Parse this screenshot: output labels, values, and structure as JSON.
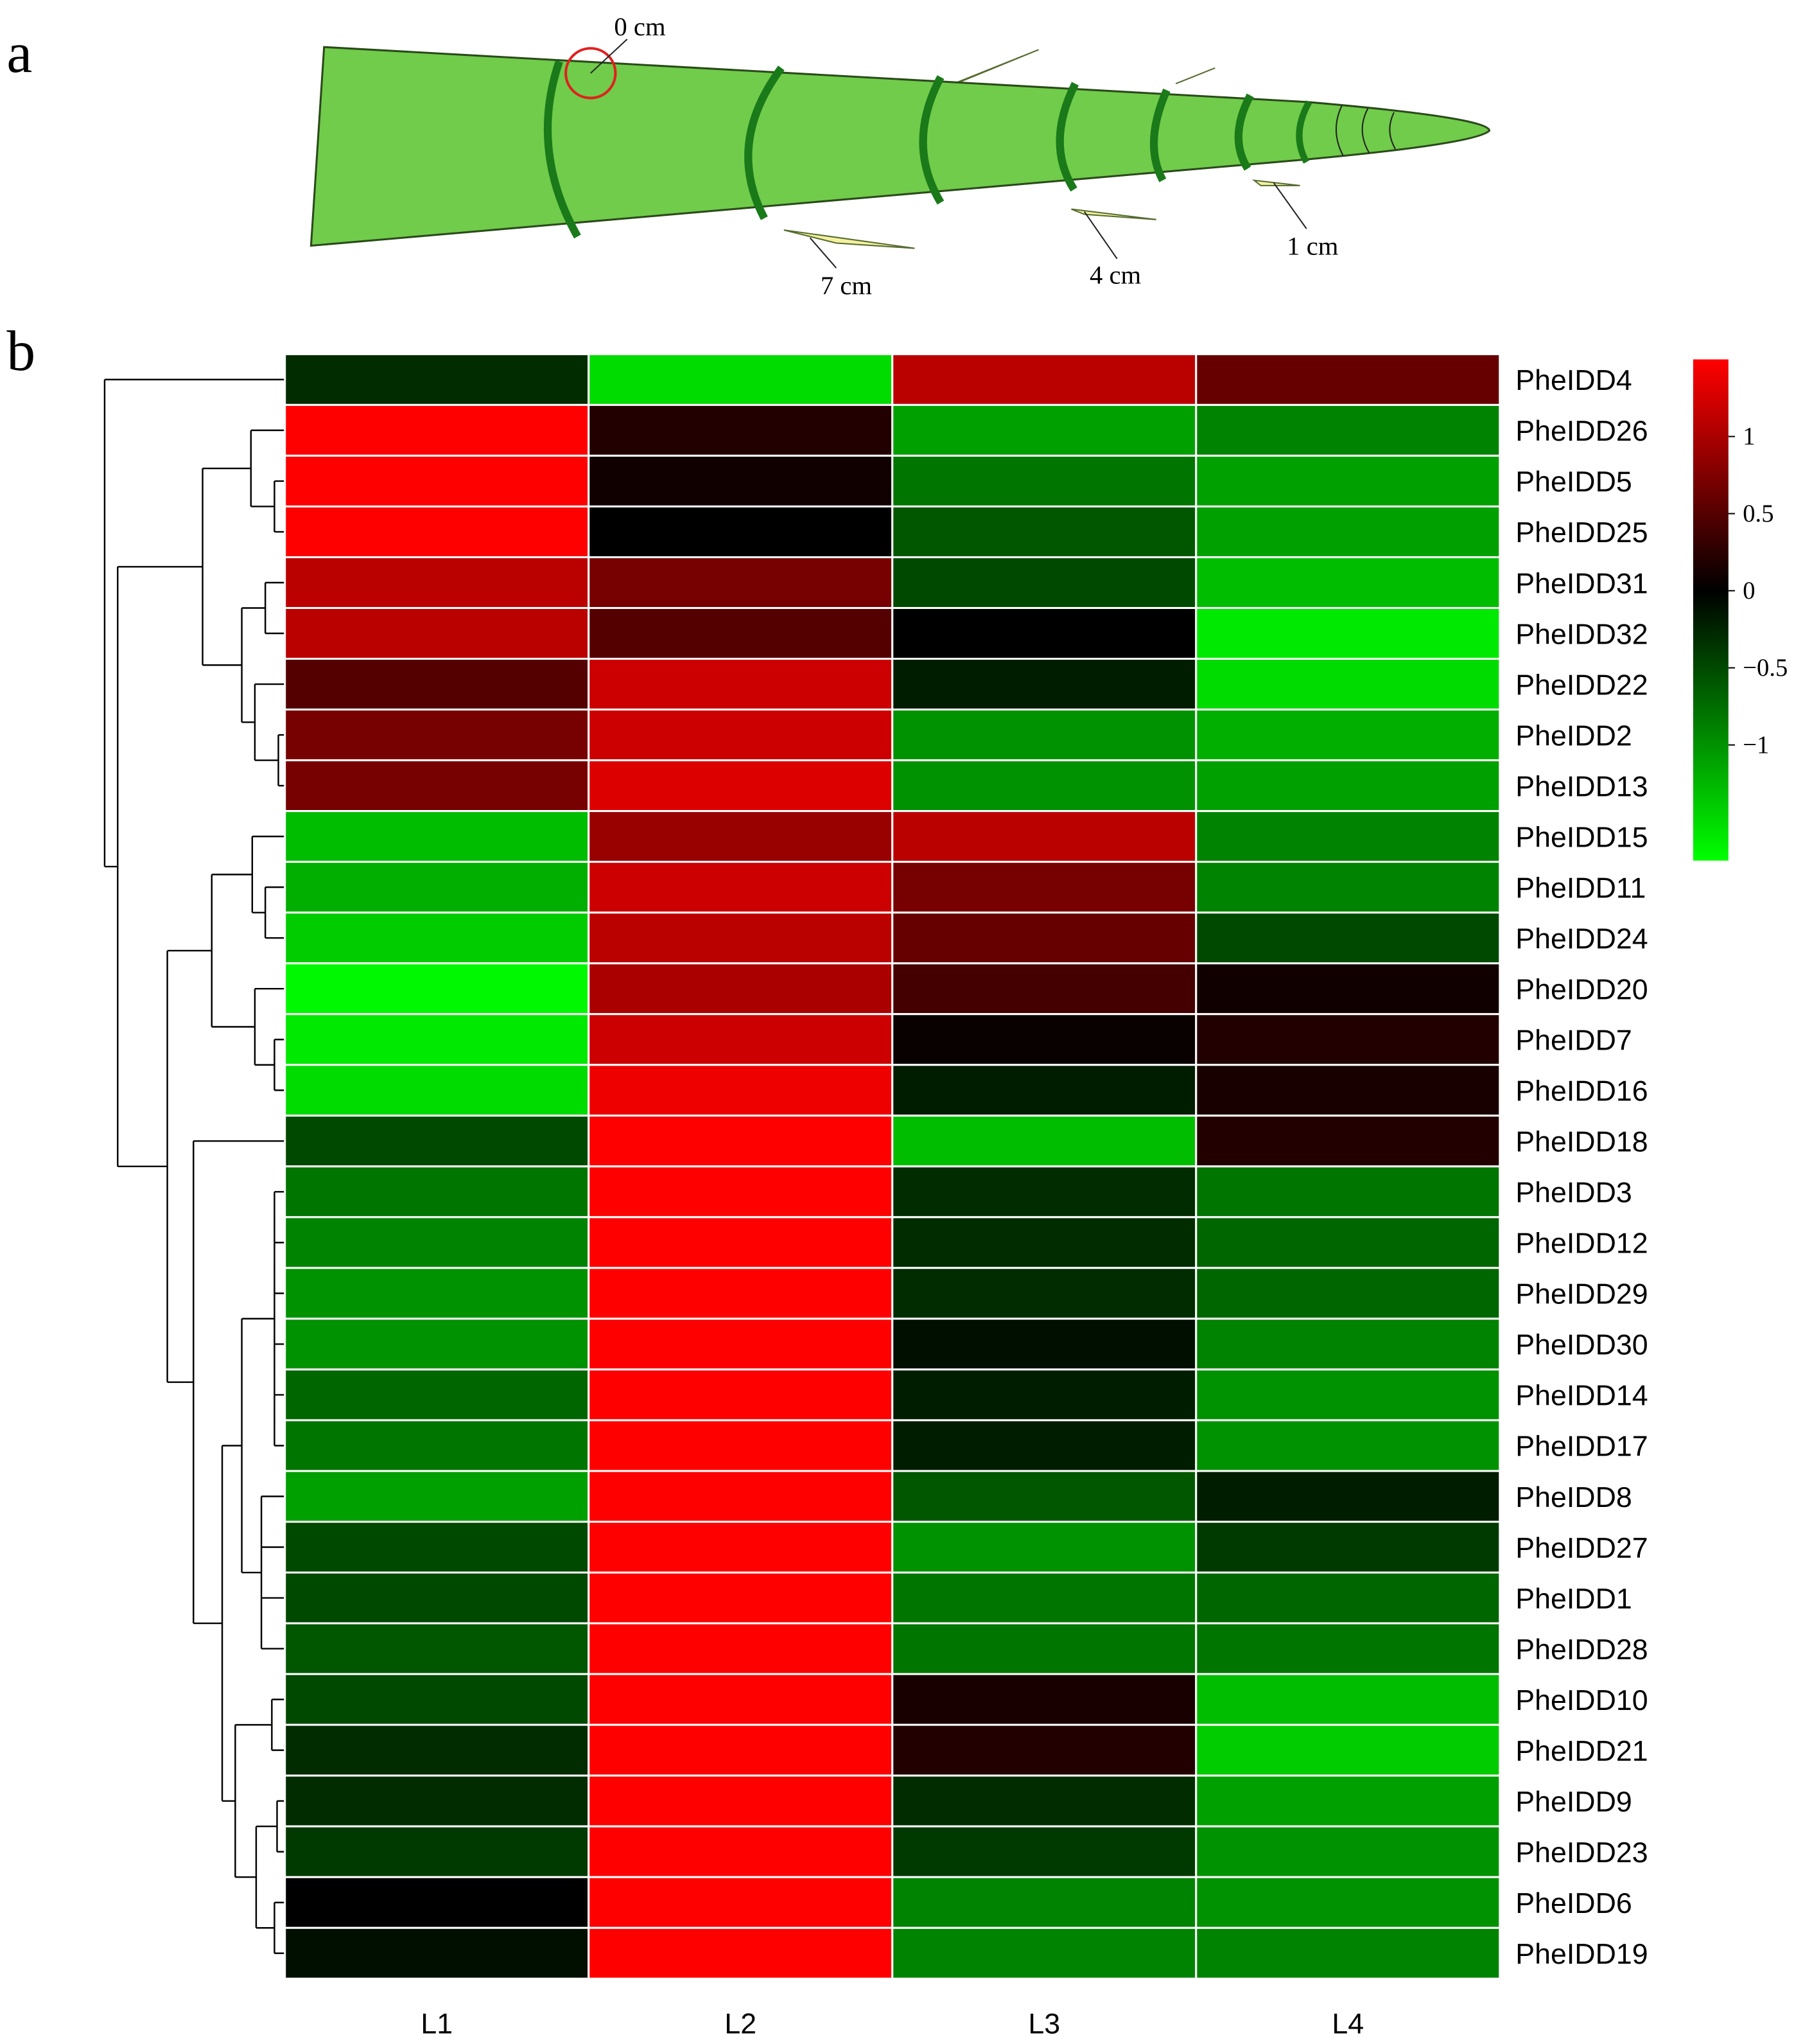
{
  "figure": {
    "panel_labels": [
      "a",
      "b"
    ],
    "annotations": [
      "0 cm",
      "7 cm",
      "4 cm",
      "1 cm"
    ]
  },
  "chart_data": {
    "type": "heatmap",
    "columns": [
      "L1",
      "L2",
      "L3",
      "L4"
    ],
    "rows": [
      "PheIDD4",
      "PheIDD26",
      "PheIDD5",
      "PheIDD25",
      "PheIDD31",
      "PheIDD32",
      "PheIDD22",
      "PheIDD2",
      "PheIDD13",
      "PheIDD15",
      "PheIDD11",
      "PheIDD24",
      "PheIDD20",
      "PheIDD7",
      "PheIDD16",
      "PheIDD18",
      "PheIDD3",
      "PheIDD12",
      "PheIDD29",
      "PheIDD30",
      "PheIDD14",
      "PheIDD17",
      "PheIDD8",
      "PheIDD27",
      "PheIDD1",
      "PheIDD28",
      "PheIDD10",
      "PheIDD21",
      "PheIDD9",
      "PheIDD23",
      "PheIDD6",
      "PheIDD19"
    ],
    "values": [
      [
        -0.3,
        -1.5,
        1.1,
        0.6
      ],
      [
        1.5,
        0.2,
        -1.1,
        -0.9
      ],
      [
        1.5,
        0.1,
        -0.8,
        -1.1
      ],
      [
        1.5,
        0,
        -0.6,
        -1.1
      ],
      [
        1.1,
        0.7,
        -0.5,
        -1.3
      ],
      [
        1.1,
        0.5,
        0,
        -1.6
      ],
      [
        0.5,
        1.2,
        -0.2,
        -1.5
      ],
      [
        0.7,
        1.2,
        -1.0,
        -1.2
      ],
      [
        0.7,
        1.3,
        -1.0,
        -1.1
      ],
      [
        -1.3,
        0.9,
        1.1,
        -0.9
      ],
      [
        -1.2,
        1.2,
        0.7,
        -0.9
      ],
      [
        -1.4,
        1.1,
        0.6,
        -0.5
      ],
      [
        -1.7,
        1.0,
        0.4,
        0.1
      ],
      [
        -1.6,
        1.2,
        0.05,
        0.2
      ],
      [
        -1.5,
        1.4,
        -0.2,
        0.15
      ],
      [
        -0.5,
        1.5,
        -1.3,
        0.2
      ],
      [
        -0.8,
        1.5,
        -0.3,
        -0.8
      ],
      [
        -0.9,
        1.5,
        -0.3,
        -0.7
      ],
      [
        -1.0,
        1.5,
        -0.3,
        -0.7
      ],
      [
        -1.0,
        1.5,
        -0.1,
        -0.9
      ],
      [
        -0.7,
        1.5,
        -0.2,
        -1.0
      ],
      [
        -0.8,
        1.5,
        -0.2,
        -1.0
      ],
      [
        -1.1,
        1.5,
        -0.6,
        -0.2
      ],
      [
        -0.5,
        1.5,
        -1.0,
        -0.4
      ],
      [
        -0.5,
        1.5,
        -0.8,
        -0.7
      ],
      [
        -0.6,
        1.5,
        -0.8,
        -0.8
      ],
      [
        -0.5,
        1.5,
        0.15,
        -1.3
      ],
      [
        -0.3,
        1.5,
        0.2,
        -1.4
      ],
      [
        -0.3,
        1.5,
        -0.3,
        -1.1
      ],
      [
        -0.4,
        1.5,
        -0.4,
        -1.0
      ],
      [
        0,
        1.5,
        -0.9,
        -1.0
      ],
      [
        -0.1,
        1.5,
        -0.9,
        -0.9
      ]
    ],
    "zlim": [
      -1.75,
      1.5
    ],
    "colorbar_ticks": [
      1,
      0.5,
      0,
      {
        "value": -0.5,
        "label": "−0.5"
      },
      {
        "value": -1,
        "label": "−1"
      }
    ],
    "low_color": "#00ff00",
    "mid_color": "#000000",
    "high_color": "#ff0000"
  }
}
